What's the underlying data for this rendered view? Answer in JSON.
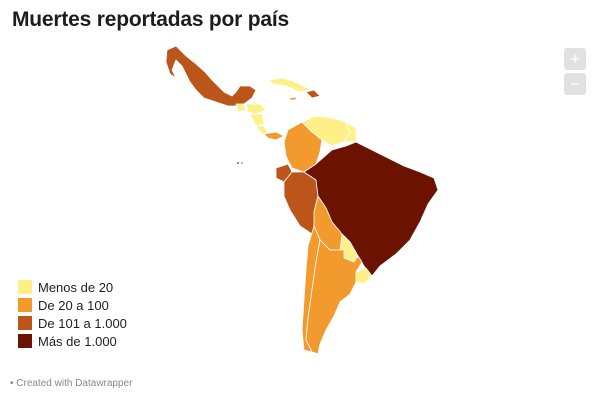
{
  "title": "Muertes reportadas por país",
  "zoom": {
    "in_label": "+",
    "out_label": "−"
  },
  "legend": [
    {
      "label": "Menos de 20",
      "color": "#fdf089"
    },
    {
      "label": "De 20 a 100",
      "color": "#f39a2e"
    },
    {
      "label": "De 101 a 1.000",
      "color": "#bb5519"
    },
    {
      "label": "Más de 1.000",
      "color": "#6b1300"
    }
  ],
  "colors": {
    "menos_20": "#fdf089",
    "de_20_100": "#f39a2e",
    "de_101_1000": "#bb5519",
    "mas_1000": "#6b1300",
    "border": "#ffffff"
  },
  "footer": "• Created with Datawrapper"
}
